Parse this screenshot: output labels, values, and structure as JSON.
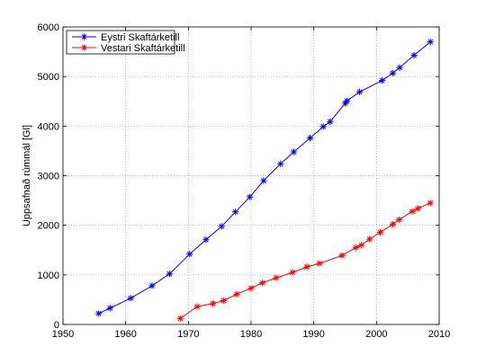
{
  "chart_data": {
    "type": "line",
    "title": "",
    "xlabel": "",
    "ylabel": "Uppsafnað rúmmál [Gl]",
    "xlim": [
      1950,
      2010
    ],
    "ylim": [
      0,
      6000
    ],
    "x_ticks": [
      "1950",
      "1960",
      "1970",
      "1980",
      "1990",
      "2000",
      "2010"
    ],
    "y_ticks": [
      "0",
      "1000",
      "2000",
      "3000",
      "4000",
      "5000",
      "6000"
    ],
    "grid": true,
    "legend_position": "top-left",
    "series": [
      {
        "name": "Eystri Skaftárketill",
        "color": "#0000ff",
        "marker": "asterisk",
        "points": [
          [
            1955.7,
            220
          ],
          [
            1957.5,
            330
          ],
          [
            1960.8,
            530
          ],
          [
            1964.2,
            780
          ],
          [
            1967.0,
            1020
          ],
          [
            1970.2,
            1420
          ],
          [
            1972.8,
            1710
          ],
          [
            1975.3,
            1980
          ],
          [
            1977.5,
            2270
          ],
          [
            1979.8,
            2570
          ],
          [
            1982.0,
            2900
          ],
          [
            1984.7,
            3240
          ],
          [
            1986.8,
            3480
          ],
          [
            1989.4,
            3760
          ],
          [
            1991.5,
            3990
          ],
          [
            1992.6,
            4090
          ],
          [
            1995.0,
            4460
          ],
          [
            1995.3,
            4510
          ],
          [
            1997.3,
            4690
          ],
          [
            2000.9,
            4920
          ],
          [
            2002.6,
            5070
          ],
          [
            2003.7,
            5180
          ],
          [
            2006.0,
            5430
          ],
          [
            2008.6,
            5700
          ]
        ]
      },
      {
        "name": "Vestari Skaftárketill",
        "color": "#ff0000",
        "marker": "asterisk",
        "points": [
          [
            1968.7,
            120
          ],
          [
            1971.4,
            360
          ],
          [
            1973.9,
            420
          ],
          [
            1975.6,
            480
          ],
          [
            1977.7,
            610
          ],
          [
            1980.0,
            730
          ],
          [
            1981.8,
            840
          ],
          [
            1984.0,
            940
          ],
          [
            1986.6,
            1050
          ],
          [
            1988.9,
            1160
          ],
          [
            1990.9,
            1230
          ],
          [
            1994.5,
            1390
          ],
          [
            1996.7,
            1550
          ],
          [
            1997.6,
            1600
          ],
          [
            1998.9,
            1720
          ],
          [
            2000.6,
            1860
          ],
          [
            2002.6,
            2020
          ],
          [
            2003.6,
            2110
          ],
          [
            2005.7,
            2280
          ],
          [
            2006.6,
            2340
          ],
          [
            2008.6,
            2450
          ]
        ]
      }
    ]
  }
}
